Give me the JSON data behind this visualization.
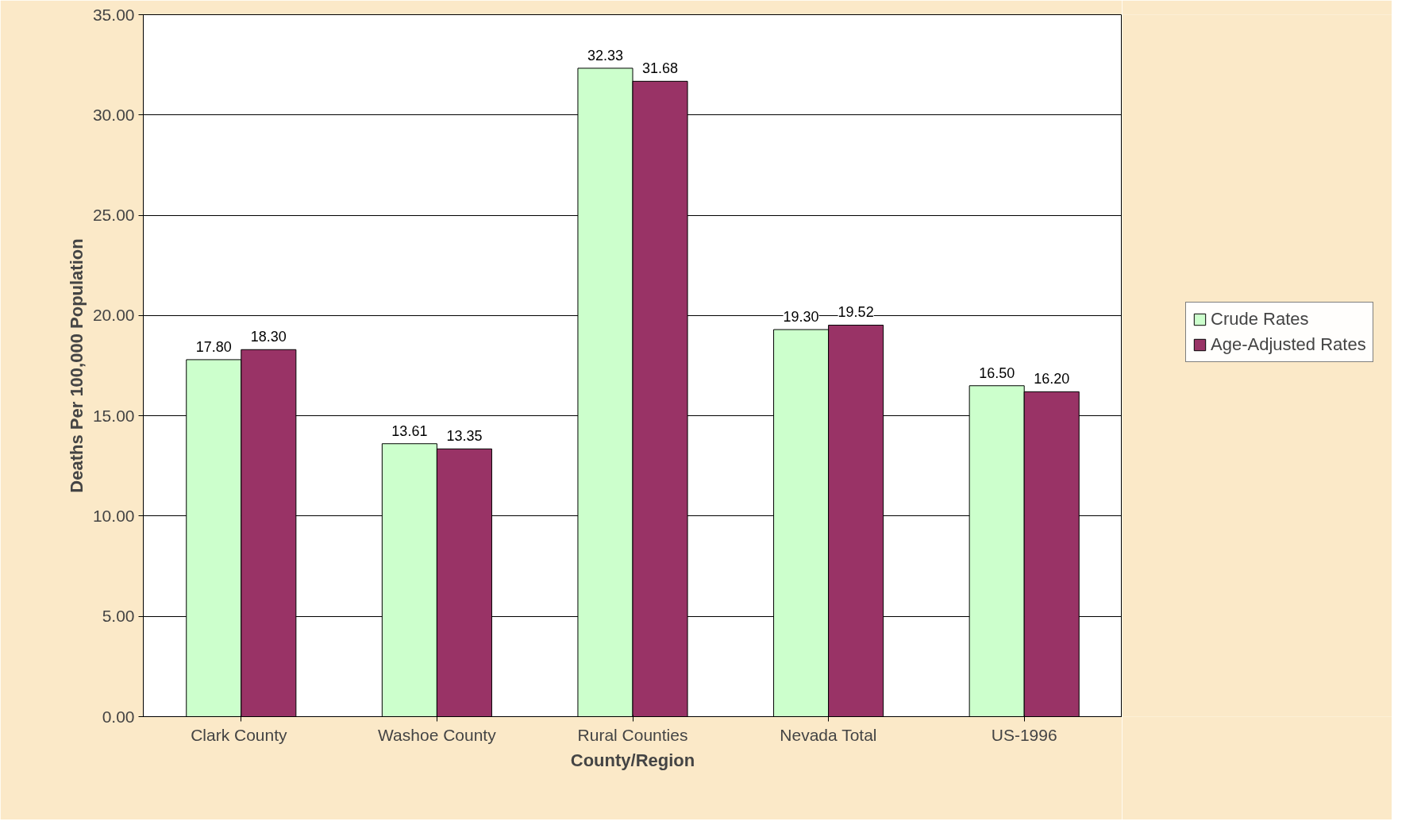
{
  "chart_data": {
    "type": "bar",
    "xlabel": "County/Region",
    "ylabel": "Deaths Per 100,000 Population",
    "categories": [
      "Clark  County",
      "Washoe County",
      "Rural Counties",
      "Nevada Total",
      "US-1996"
    ],
    "series": [
      {
        "name": "Crude Rates",
        "color": "#ccffcc",
        "values": [
          17.8,
          13.61,
          32.33,
          19.3,
          16.5
        ],
        "value_labels": [
          "17.80",
          "13.61",
          "32.33",
          "19.30",
          "16.50"
        ]
      },
      {
        "name": "Age-Adjusted Rates",
        "color": "#993366",
        "values": [
          18.3,
          13.35,
          31.68,
          19.52,
          16.2
        ],
        "value_labels": [
          "18.30",
          "13.35",
          "31.68",
          "19.52",
          "16.20"
        ]
      }
    ],
    "ylim": [
      0,
      35
    ],
    "yticks": [
      {
        "value": 0,
        "label": "0.00"
      },
      {
        "value": 5,
        "label": "5.00"
      },
      {
        "value": 10,
        "label": "10.00"
      },
      {
        "value": 15,
        "label": "15.00"
      },
      {
        "value": 20,
        "label": "20.00"
      },
      {
        "value": 25,
        "label": "25.00"
      },
      {
        "value": 30,
        "label": "30.00"
      },
      {
        "value": 35,
        "label": "35.00"
      }
    ],
    "grid": "y",
    "legend": "right"
  }
}
